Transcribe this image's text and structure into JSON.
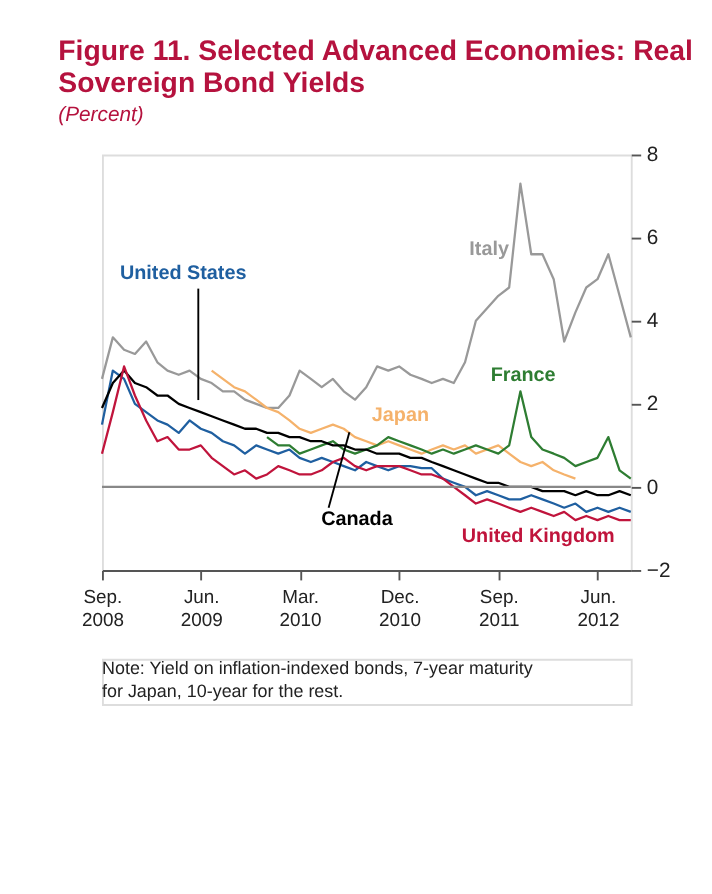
{
  "chart_data": {
    "type": "line",
    "title": "Figure 11. Selected Advanced Economies: Real Sovereign Bond Yields",
    "subtitle": "(Percent)",
    "x": [
      "2008-09",
      "2008-10",
      "2008-11",
      "2008-12",
      "2009-01",
      "2009-02",
      "2009-03",
      "2009-04",
      "2009-05",
      "2009-06",
      "2009-07",
      "2009-08",
      "2009-09",
      "2009-10",
      "2009-11",
      "2009-12",
      "2010-01",
      "2010-02",
      "2010-03",
      "2010-04",
      "2010-05",
      "2010-06",
      "2010-07",
      "2010-08",
      "2010-09",
      "2010-10",
      "2010-11",
      "2010-12",
      "2011-01",
      "2011-02",
      "2011-03",
      "2011-04",
      "2011-05",
      "2011-06",
      "2011-07",
      "2011-08",
      "2011-09",
      "2011-10",
      "2011-11",
      "2011-12",
      "2012-01",
      "2012-02",
      "2012-03",
      "2012-04",
      "2012-05",
      "2012-06",
      "2012-07",
      "2012-08",
      "2012-09"
    ],
    "series": [
      {
        "name": "Italy",
        "color": "#999999",
        "values": [
          2.6,
          3.6,
          3.3,
          3.2,
          3.5,
          3.0,
          2.8,
          2.7,
          2.8,
          2.6,
          2.5,
          2.3,
          2.3,
          2.1,
          2.0,
          1.9,
          1.9,
          2.2,
          2.8,
          2.6,
          2.4,
          2.6,
          2.3,
          2.1,
          2.4,
          2.9,
          2.8,
          2.9,
          2.7,
          2.6,
          2.5,
          2.6,
          2.5,
          3.0,
          4.0,
          4.3,
          4.6,
          4.8,
          7.3,
          5.6,
          5.6,
          5.0,
          3.5,
          4.2,
          4.8,
          5.0,
          5.6,
          4.6,
          3.6
        ]
      },
      {
        "name": "United States",
        "color": "#1f5fa0",
        "values": [
          1.5,
          2.8,
          2.6,
          2.0,
          1.8,
          1.6,
          1.5,
          1.3,
          1.6,
          1.4,
          1.3,
          1.1,
          1.0,
          0.8,
          1.0,
          0.9,
          0.8,
          0.9,
          0.7,
          0.6,
          0.7,
          0.6,
          0.5,
          0.4,
          0.6,
          0.5,
          0.4,
          0.5,
          0.5,
          0.45,
          0.45,
          0.2,
          0.1,
          0.0,
          -0.2,
          -0.1,
          -0.2,
          -0.3,
          -0.3,
          -0.2,
          -0.3,
          -0.4,
          -0.5,
          -0.4,
          -0.6,
          -0.5,
          -0.6,
          -0.5,
          -0.6
        ]
      },
      {
        "name": "Japan",
        "color": "#f5b26b",
        "values": [
          null,
          null,
          null,
          null,
          null,
          null,
          null,
          null,
          null,
          null,
          2.8,
          2.6,
          2.4,
          2.3,
          2.1,
          1.9,
          1.8,
          1.6,
          1.4,
          1.3,
          1.4,
          1.5,
          1.4,
          1.2,
          1.1,
          1.0,
          1.1,
          1.0,
          0.9,
          0.8,
          0.9,
          1.0,
          0.9,
          1.0,
          0.8,
          0.9,
          1.0,
          0.8,
          0.6,
          0.5,
          0.6,
          0.4,
          0.3,
          0.2,
          null,
          null,
          null,
          null,
          null
        ]
      },
      {
        "name": "France",
        "color": "#2e7d32",
        "values": [
          null,
          null,
          null,
          null,
          null,
          null,
          null,
          null,
          null,
          null,
          null,
          null,
          null,
          null,
          null,
          1.2,
          1.0,
          1.0,
          0.8,
          0.9,
          1.0,
          1.1,
          0.9,
          0.8,
          0.9,
          1.0,
          1.2,
          1.1,
          1.0,
          0.9,
          0.8,
          0.9,
          0.8,
          0.9,
          1.0,
          0.9,
          0.8,
          1.0,
          2.3,
          1.2,
          0.9,
          0.8,
          0.7,
          0.5,
          0.6,
          0.7,
          1.2,
          0.4,
          0.2
        ]
      },
      {
        "name": "Canada",
        "color": "#000000",
        "values": [
          1.9,
          2.5,
          2.8,
          2.5,
          2.4,
          2.2,
          2.2,
          2.0,
          1.9,
          1.8,
          1.7,
          1.6,
          1.5,
          1.4,
          1.4,
          1.3,
          1.3,
          1.2,
          1.2,
          1.1,
          1.1,
          1.0,
          1.0,
          0.9,
          0.9,
          0.8,
          0.8,
          0.8,
          0.7,
          0.7,
          0.6,
          0.5,
          0.4,
          0.3,
          0.2,
          0.1,
          0.1,
          0.0,
          0.0,
          0.0,
          -0.1,
          -0.1,
          -0.1,
          -0.2,
          -0.1,
          -0.2,
          -0.2,
          -0.1,
          -0.2
        ]
      },
      {
        "name": "United Kingdom",
        "color": "#c0143c",
        "values": [
          0.8,
          1.8,
          2.9,
          2.2,
          1.6,
          1.1,
          1.2,
          0.9,
          0.9,
          1.0,
          0.7,
          0.5,
          0.3,
          0.4,
          0.2,
          0.3,
          0.5,
          0.4,
          0.3,
          0.3,
          0.4,
          0.6,
          0.7,
          0.5,
          0.4,
          0.5,
          0.5,
          0.5,
          0.4,
          0.3,
          0.3,
          0.2,
          0.0,
          -0.2,
          -0.4,
          -0.3,
          -0.4,
          -0.5,
          -0.6,
          -0.5,
          -0.6,
          -0.7,
          -0.6,
          -0.8,
          -0.7,
          -0.8,
          -0.7,
          -0.8,
          -0.8
        ]
      }
    ],
    "xlim": [
      "2008-09",
      "2012-09"
    ],
    "xticks": [
      {
        "value": "2008-09",
        "label": "Sep. 2008"
      },
      {
        "value": "2009-06",
        "label": "Jun. 2009"
      },
      {
        "value": "2010-03",
        "label": "Mar. 2010"
      },
      {
        "value": "2010-12",
        "label": "Dec. 2010"
      },
      {
        "value": "2011-09",
        "label": "Sep. 2011"
      },
      {
        "value": "2012-06",
        "label": "Jun. 2012"
      }
    ],
    "ylim": [
      -2,
      8
    ],
    "yticks": [
      -2,
      0,
      2,
      4,
      6,
      8
    ],
    "ref_lines": [
      {
        "axis": "y",
        "value": 0,
        "color": "#888888"
      }
    ],
    "grid": false,
    "legend": false,
    "marker": "none",
    "line_style": "solid",
    "annotations": [
      "Note: Yield on inflation-indexed bonds, 7-year maturity for Japan, 10-year for the rest."
    ]
  }
}
